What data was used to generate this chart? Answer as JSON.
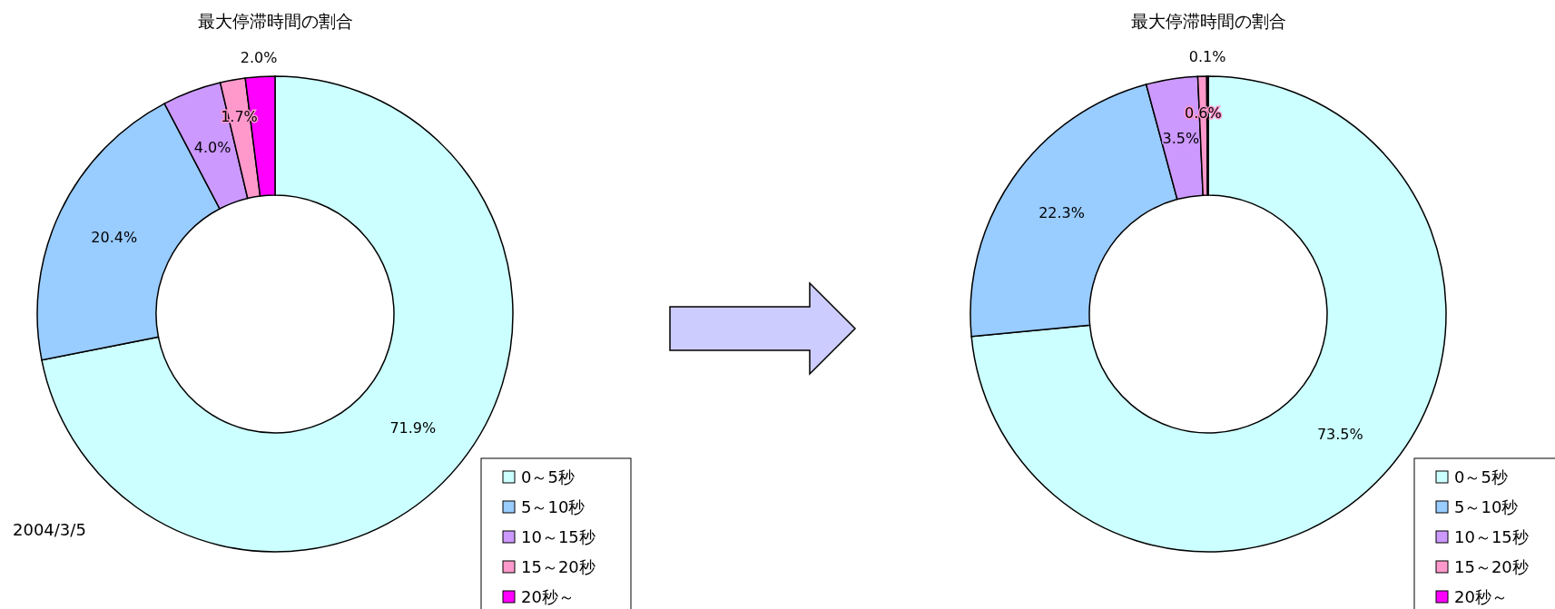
{
  "chart_data": [
    {
      "type": "donut",
      "title": "最大停滞時間の割合",
      "categories": [
        "0～5秒",
        "5～10秒",
        "10～15秒",
        "15～20秒",
        "20秒～"
      ],
      "values": [
        71.9,
        20.4,
        4.0,
        1.7,
        2.0
      ],
      "colors": [
        "#ccffff",
        "#99ccff",
        "#cc99ff",
        "#ff99cc",
        "#ff00ff"
      ],
      "value_labels": [
        "71.9%",
        "20.4%",
        "4.0%",
        "1.7%",
        "2.0%"
      ],
      "legend": "bottom right",
      "annotations": [
        "2004/3/5"
      ]
    },
    {
      "type": "donut",
      "title": "最大停滞時間の割合",
      "categories": [
        "0～5秒",
        "5～10秒",
        "10～15秒",
        "15～20秒",
        "20秒～"
      ],
      "values": [
        73.5,
        22.3,
        3.5,
        0.6,
        0.1
      ],
      "colors": [
        "#ccffff",
        "#99ccff",
        "#cc99ff",
        "#ff99cc",
        "#ff00ff"
      ],
      "value_labels": [
        "73.5%",
        "22.3%",
        "3.5%",
        "0.6%",
        "0.1%"
      ],
      "legend": "bottom right"
    }
  ]
}
